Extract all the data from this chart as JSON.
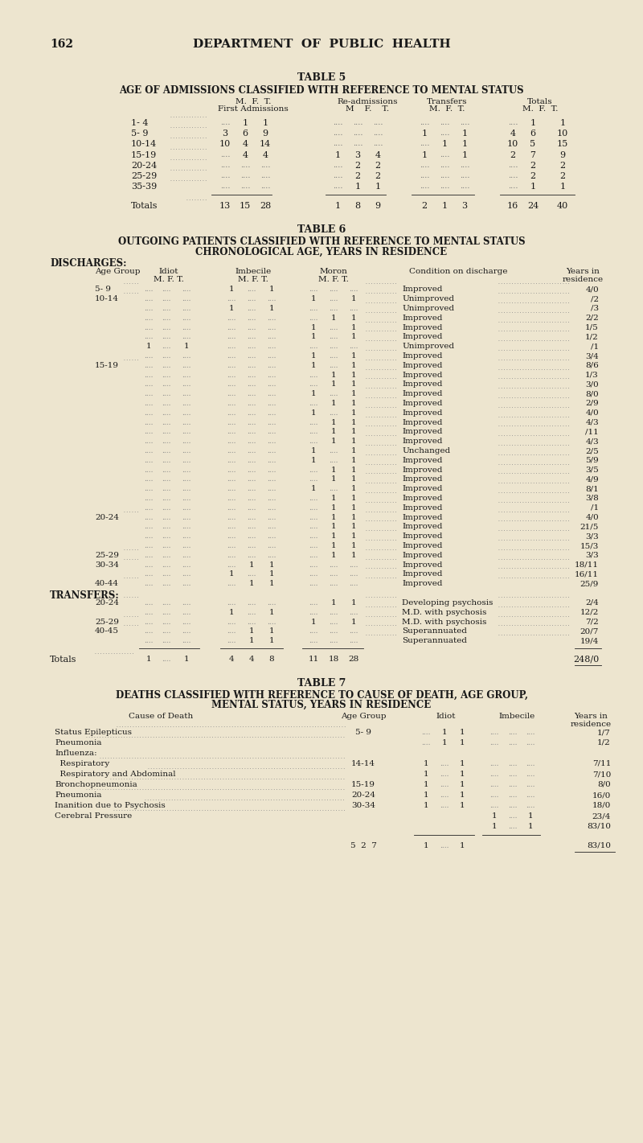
{
  "bg_color": "#ede5cf",
  "text_color": "#1a1a1a",
  "page_number": "162",
  "header": "DEPARTMENT  OF  PUBLIC  HEALTH",
  "table5_title": "TABLE 5",
  "table5_subtitle": "AGE OF ADMISSIONS CLASSIFIED WITH REFERENCE TO MENTAL STATUS",
  "table5_rows": [
    [
      "1- 4",
      "....",
      "1",
      "1",
      "....",
      "....",
      "....",
      "....",
      "....",
      "....",
      "....",
      "1",
      "1"
    ],
    [
      "5- 9",
      "3",
      "6",
      "9",
      "....",
      "....",
      "....",
      "1",
      "....",
      "1",
      "4",
      "6",
      "10"
    ],
    [
      "10-14",
      "10",
      "4",
      "14",
      "....",
      "....",
      "....",
      "....",
      "1",
      "1",
      "10",
      "5",
      "15"
    ],
    [
      "15-19",
      "....",
      "4",
      "4",
      "1",
      "3",
      "4",
      "1",
      "....",
      "1",
      "2",
      "7",
      "9"
    ],
    [
      "20-24",
      "....",
      "....",
      "....",
      "....",
      "2",
      "2",
      "....",
      "....",
      "....",
      "....",
      "2",
      "2"
    ],
    [
      "25-29",
      "....",
      "....",
      "....",
      "....",
      "2",
      "2",
      "....",
      "....",
      "....",
      "....",
      "2",
      "2"
    ],
    [
      "35-39",
      "....",
      "....",
      "....",
      "....",
      "1",
      "1",
      "....",
      "....",
      "....",
      "....",
      "1",
      "1"
    ]
  ],
  "table5_totals": [
    "Totals",
    "13",
    "15",
    "28",
    "1",
    "8",
    "9",
    "2",
    "1",
    "3",
    "16",
    "24",
    "40"
  ],
  "table6_title": "TABLE 6",
  "table6_subtitle1": "OUTGOING PATIENTS CLASSIFIED WITH REFERENCE TO MENTAL STATUS",
  "table6_subtitle2": "CHRONOLOGICAL AGE, YEARS IN RESIDENCE",
  "discharges_rows": [
    [
      "5- 9",
      ".... .... ....",
      "1 .... 1",
      ".... .... ....",
      "Improved",
      "4/0"
    ],
    [
      "10-14",
      ".... .... ....",
      ".... .... ....",
      "1 .... 1",
      "Unimproved",
      "/2"
    ],
    [
      "",
      ".... .... ....",
      "1 .... 1",
      ".... .... ....",
      "Unimproved",
      "/3"
    ],
    [
      "",
      ".... .... ....",
      ".... .... ....",
      ".... 1 1",
      "Improved",
      "2/2"
    ],
    [
      "",
      ".... .... ....",
      ".... .... ....",
      "1 .... 1",
      "Improved",
      "1/5"
    ],
    [
      "",
      ".... .... ....",
      ".... .... ....",
      "1 .... 1",
      "Improved",
      "1/2"
    ],
    [
      "",
      "1 .... 1",
      ".... .... ....",
      ".... .... ....",
      "Unimproved",
      "/1"
    ],
    [
      "",
      ".... .... ....",
      ".... .... ....",
      "1 .... 1",
      "Improved",
      "3/4"
    ],
    [
      "15-19",
      ".... .... ....",
      ".... .... ....",
      "1 .... 1",
      "Improved",
      "8/6"
    ],
    [
      "",
      ".... .... ....",
      ".... .... ....",
      ".... 1 1",
      "Improved",
      "1/3"
    ],
    [
      "",
      ".... .... ....",
      ".... .... ....",
      ".... 1 1",
      "Improved",
      "3/0"
    ],
    [
      "",
      ".... .... ....",
      ".... .... ....",
      "1 .... 1",
      "Improved",
      "8/0"
    ],
    [
      "",
      ".... .... ....",
      ".... .... ....",
      ".... 1 1",
      "Improved",
      "2/9"
    ],
    [
      "",
      ".... .... ....",
      ".... .... ....",
      "1 .... 1",
      "Improved",
      "4/0"
    ],
    [
      "",
      ".... .... ....",
      ".... .... ....",
      ".... 1 1",
      "Improved",
      "4/3"
    ],
    [
      "",
      ".... .... ....",
      ".... .... ....",
      ".... 1 1",
      "Improved",
      "/11"
    ],
    [
      "",
      ".... .... ....",
      ".... .... ....",
      ".... 1 1",
      "Improved",
      "4/3"
    ],
    [
      "",
      ".... .... ....",
      ".... .... ....",
      "1 .... 1",
      "Unchanged",
      "2/5"
    ],
    [
      "",
      ".... .... ....",
      ".... .... ....",
      "1 .... 1",
      "Improved",
      "5/9"
    ],
    [
      "",
      ".... .... ....",
      ".... .... ....",
      ".... 1 1",
      "Improved",
      "3/5"
    ],
    [
      "",
      ".... .... ....",
      ".... .... ....",
      ".... 1 1",
      "Improved",
      "4/9"
    ],
    [
      "",
      ".... .... ....",
      ".... .... ....",
      "1 .... 1",
      "Improved",
      "8/1"
    ],
    [
      "",
      ".... .... ....",
      ".... .... ....",
      ".... 1 1",
      "Improved",
      "3/8"
    ],
    [
      "",
      ".... .... ....",
      ".... .... ....",
      ".... 1 1",
      "Improved",
      "/1"
    ],
    [
      "20-24",
      ".... .... ....",
      ".... .... ....",
      ".... 1 1",
      "Improved",
      "4/0"
    ],
    [
      "",
      ".... .... ....",
      ".... .... ....",
      ".... 1 1",
      "Improved",
      "21/5"
    ],
    [
      "",
      ".... .... ....",
      ".... .... ....",
      ".... 1 1",
      "Improved",
      "3/3"
    ],
    [
      "",
      ".... .... ....",
      ".... .... ....",
      ".... 1 1",
      "Improved",
      "15/3"
    ],
    [
      "25-29",
      ".... .... ....",
      ".... .... ....",
      ".... 1 1",
      "Improved",
      "3/3"
    ],
    [
      "30-34",
      ".... .... ....",
      ".... 1 1",
      ".... .... ....",
      "Improved",
      "18/11"
    ],
    [
      "",
      ".... .... ....",
      "1 .... 1",
      ".... .... ....",
      "Improved",
      "16/11"
    ],
    [
      "40-44",
      ".... .... ....",
      ".... 1 1",
      ".... .... ....",
      "Improved",
      "25/9"
    ]
  ],
  "transfers_rows": [
    [
      "20-24",
      ".... .... ....",
      ".... .... ....",
      ".... 1 1",
      "Developing psychosis",
      "2/4"
    ],
    [
      "",
      ".... .... ....",
      "1 .... 1",
      ".... .... ....",
      "M.D. with psychosis",
      "12/2"
    ],
    [
      "25-29",
      ".... .... ....",
      ".... .... ....",
      "1 .... 1",
      "M.D. with psychosis",
      "7/2"
    ],
    [
      "40-45",
      ".... .... ....",
      ".... 1 1",
      ".... .... ....",
      "Superannuated",
      "20/7"
    ],
    [
      "",
      ".... .... ....",
      ".... 1 1",
      ".... .... ....",
      "Superannuated",
      "19/4"
    ]
  ],
  "table7_title": "TABLE 7",
  "table7_subtitle1": "DEATHS CLASSIFIED WITH REFERENCE TO CAUSE OF DEATH, AGE GROUP,",
  "table7_subtitle2": "MENTAL STATUS, YEARS IN RESIDENCE",
  "table7_rows": [
    [
      "Status Epilepticus",
      "5- 9",
      ".... 1 1",
      ".... .... ....",
      "1/7"
    ],
    [
      "Pneumonia",
      "",
      ".... 1 1",
      ".... .... ....",
      "1/2"
    ],
    [
      "Influenza:",
      "",
      "",
      "",
      ""
    ],
    [
      "  Respiratory",
      "14-14",
      "1 .... 1",
      ".... .... ....",
      "7/11"
    ],
    [
      "  Respiratory and Abdominal",
      "",
      "1 .... 1",
      ".... .... ....",
      "7/10"
    ],
    [
      "Bronchopneumonia",
      "15-19",
      "1 .... 1",
      ".... .... ....",
      "8/0"
    ],
    [
      "Pneumonia",
      "20-24",
      "1 .... 1",
      ".... .... ....",
      "16/0"
    ],
    [
      "Inanition due to Psychosis",
      "30-34",
      "1 .... 1",
      ".... .... ....",
      "18/0"
    ],
    [
      "Cerebral Pressure",
      "",
      "",
      "1 .... 1",
      "23/4"
    ],
    [
      "",
      "",
      "",
      "1 .... 1",
      "83/10"
    ]
  ],
  "table7_totals_idiot": "5  2  7",
  "table7_totals_imbecile": "1 .... 1",
  "table7_totals_yrs": "83/10"
}
